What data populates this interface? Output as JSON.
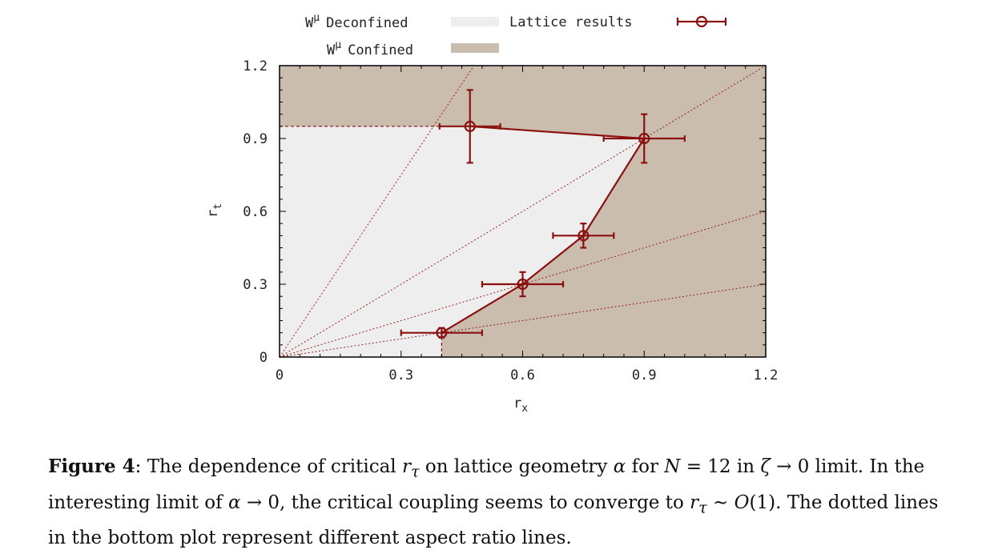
{
  "chart_data": {
    "type": "scatter",
    "xlabel": "r",
    "xlabel_sub": "x",
    "ylabel": "r",
    "ylabel_sub": "t",
    "xlim": [
      0,
      1.2
    ],
    "ylim": [
      0,
      1.2
    ],
    "xticks": [
      "0",
      "0.3",
      "0.6",
      "0.9",
      "1.2"
    ],
    "yticks": [
      "0",
      "0.3",
      "0.6",
      "0.9",
      "1.2"
    ],
    "legend": {
      "deconfined_label": "W",
      "deconfined_sup": "μ",
      "deconfined_text": "Deconfined",
      "confined_label": "W",
      "confined_sup": "μ",
      "confined_text": "Confined",
      "lattice_text": "Lattice results"
    },
    "series": [
      {
        "name": "Lattice results",
        "points": [
          {
            "x": 0.4,
            "y": 0.1,
            "xerr": 0.1,
            "yerr": 0.02
          },
          {
            "x": 0.6,
            "y": 0.3,
            "xerr": 0.1,
            "yerr": 0.05
          },
          {
            "x": 0.75,
            "y": 0.5,
            "xerr": 0.075,
            "yerr": 0.05
          },
          {
            "x": 0.9,
            "y": 0.9,
            "xerr": 0.1,
            "yerr": 0.1
          },
          {
            "x": 0.47,
            "y": 0.95,
            "xerr": 0.075,
            "yerr": 0.15
          }
        ]
      }
    ],
    "aspect_ratio_slopes": [
      0.25,
      0.5,
      1,
      2.5
    ],
    "colors": {
      "deconfined": "#eeeeee",
      "confined": "#cbbdae",
      "series": "#8b1010"
    }
  },
  "caption": {
    "label": "Figure 4",
    "p1": ": The dependence of critical ",
    "r": "r",
    "tau": "τ",
    "p2": " on lattice geometry ",
    "alpha": "α",
    "p3": " for ",
    "N": "N",
    "p4": " = 12 in ",
    "zeta": "ζ",
    "p5": " → 0 limit. In the interesting limit of ",
    "p6": " → 0, the critical coupling seems to converge to ",
    "p7": " ∼ ",
    "O": "O",
    "p8": "(1). The dotted lines in the bottom plot represent different aspect ratio lines."
  }
}
